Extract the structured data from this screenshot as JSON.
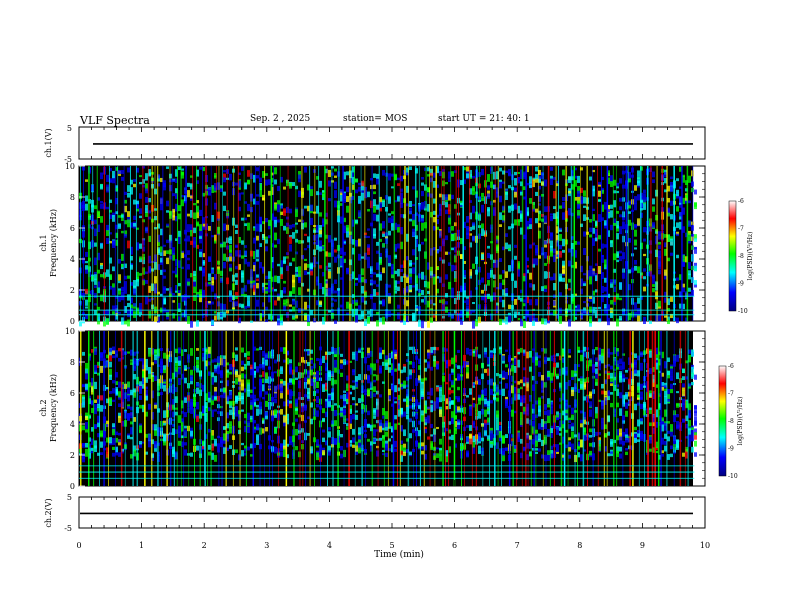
{
  "header": {
    "title": "VLF Spectra",
    "date": "Sep. 2 , 2025",
    "station": "station= MOS",
    "start_ut": "start UT =  21: 40: 1"
  },
  "chart_data": [
    {
      "type": "line",
      "name": "waveform-ch1",
      "ylabel": "ch.1(V)",
      "ylim": [
        -5,
        5
      ],
      "y_tick_labels": [
        "5",
        "-5"
      ],
      "xlim": [
        0,
        10
      ],
      "values_level": -0.3
    },
    {
      "type": "heatmap",
      "name": "spectrogram-ch1",
      "ylabel_line1": "ch.1",
      "ylabel_line2": "Frequency (kHz)",
      "ylim": [
        0,
        10
      ],
      "y_ticks": [
        "0",
        "2",
        "4",
        "6",
        "8",
        "10"
      ],
      "xlim": [
        0,
        9.83
      ],
      "band_khz": [
        0,
        10
      ],
      "interference_lines_khz": [
        0.4,
        0.7,
        1.6
      ],
      "colorbar": {
        "label": "log(PSD)(V²/Hz)",
        "range": [
          -10,
          -6
        ],
        "ticks": [
          "-6",
          "-7",
          "-8",
          "-9",
          "-10"
        ],
        "colors": [
          "#000080",
          "#0000ff",
          "#00ffff",
          "#00ff00",
          "#ffff00",
          "#ff0000",
          "#ffffff"
        ]
      }
    },
    {
      "type": "heatmap",
      "name": "spectrogram-ch2",
      "ylabel_line1": "ch.2",
      "ylabel_line2": "Frequency (kHz)",
      "ylim": [
        0,
        10
      ],
      "y_ticks": [
        "0",
        "2",
        "4",
        "6",
        "8",
        "10"
      ],
      "xlim": [
        0,
        9.83
      ],
      "band_khz": [
        2,
        9
      ],
      "interference_lines_khz": [
        0.5,
        0.9,
        1.3
      ],
      "colorbar": {
        "label": "log(PSD)(V²/Hz)",
        "range": [
          -10,
          -6
        ],
        "ticks": [
          "-6",
          "-7",
          "-8",
          "-9",
          "-10"
        ],
        "colors": [
          "#000080",
          "#0000ff",
          "#00ffff",
          "#00ff00",
          "#ffff00",
          "#ff0000",
          "#ffffff"
        ]
      }
    },
    {
      "type": "line",
      "name": "waveform-ch2",
      "ylabel": "ch.2(V)",
      "ylim": [
        -5,
        5
      ],
      "y_tick_labels": [
        "5",
        "-5"
      ],
      "xlim": [
        0,
        10
      ],
      "values_level": -0.3
    }
  ],
  "x_axis": {
    "label": "Time (min)",
    "range": [
      0,
      10
    ],
    "ticks": [
      "0",
      "1",
      "2",
      "3",
      "4",
      "5",
      "6",
      "7",
      "8",
      "9",
      "10"
    ]
  }
}
